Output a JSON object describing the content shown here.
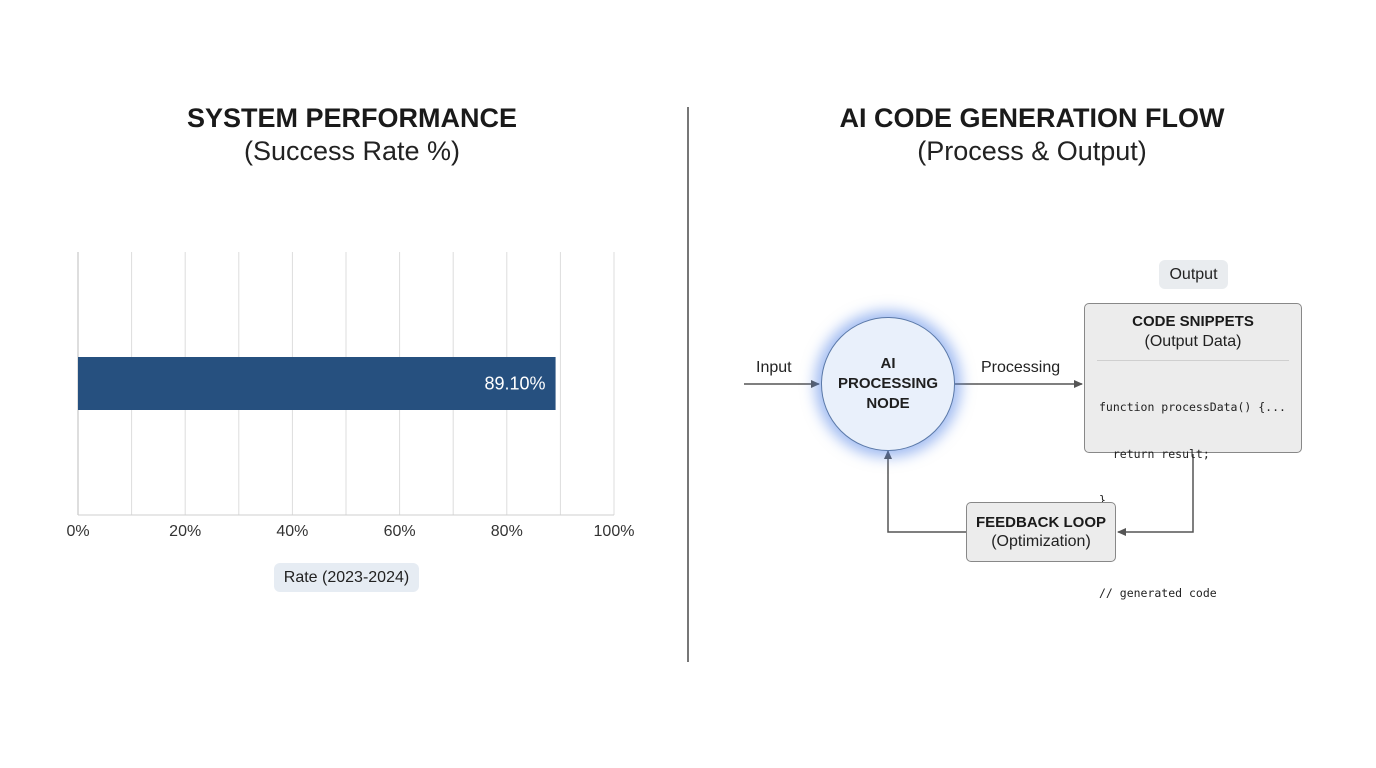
{
  "left_panel": {
    "title": "SYSTEM PERFORMANCE",
    "subtitle": "(Success Rate %)"
  },
  "chart_data": {
    "type": "bar",
    "orientation": "horizontal",
    "title": "SYSTEM PERFORMANCE",
    "subtitle": "(Success Rate %)",
    "series": [
      {
        "name": "Rate (2023-2024)",
        "values": [
          89.1
        ],
        "data_labels": [
          "89.10%"
        ],
        "color": "#26507f"
      }
    ],
    "xlim": [
      0,
      100
    ],
    "x_ticks": [
      "0%",
      "20%",
      "40%",
      "60%",
      "80%",
      "100%"
    ],
    "grid": true,
    "legend": "bottom"
  },
  "right_panel": {
    "title": "AI CODE GENERATION FLOW",
    "subtitle": "(Process & Output)",
    "output_label": "Output",
    "input_label": "Input",
    "processing_label": "Processing",
    "node_lines": [
      "AI",
      "PROCESSING",
      "NODE"
    ],
    "code_box": {
      "title": "CODE SNIPPETS",
      "subtitle": "(Output Data)",
      "lines": [
        "function processData() {...",
        "  return result;",
        "}",
        "",
        "// generated code"
      ]
    },
    "feedback": {
      "title": "FEEDBACK LOOP",
      "subtitle": "(Optimization)"
    }
  },
  "colors": {
    "bar": "#26507f",
    "node_glow": "#5082e6",
    "divider": "#777777"
  }
}
